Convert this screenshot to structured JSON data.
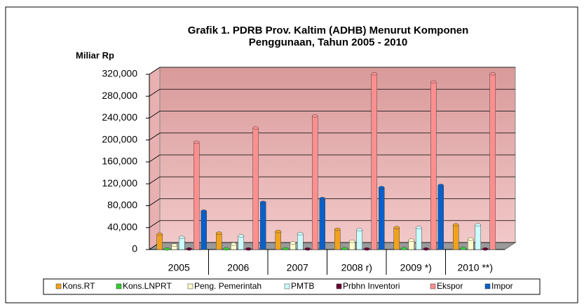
{
  "chart_data": {
    "type": "bar3d",
    "title": [
      "Grafik 1. PDRB Prov. Kaltim (ADHB) Menurut Komponen",
      "Penggunaan,  Tahun 2005 -  2010"
    ],
    "y_label": "Miliar Rp",
    "categories": [
      "2005",
      "2006",
      "2007",
      "2008 r)",
      "2009 *)",
      "2010 **)"
    ],
    "ylim": [
      0,
      320000
    ],
    "yticks": [
      0,
      {
        "value": 40000,
        "label": "40,000"
      },
      {
        "value": 80000,
        "label": "80,000"
      },
      {
        "value": 120000,
        "label": "120,000"
      },
      {
        "value": 160000,
        "label": "160,000"
      },
      {
        "value": 200000,
        "label": "200,000"
      },
      {
        "value": 240000,
        "label": "240,000"
      },
      {
        "value": 280000,
        "label": "280,000"
      },
      {
        "value": 320000,
        "label": "320,000"
      }
    ],
    "grid": true,
    "legend": "bottom",
    "series": [
      {
        "name": "Kons.RT",
        "color": "#f0a21e",
        "values": [
          28000,
          30000,
          33000,
          37000,
          40000,
          45000
        ]
      },
      {
        "name": "Kons.LNPRT",
        "color": "#33cc33",
        "values": [
          1000,
          1200,
          1400,
          1600,
          1800,
          2000
        ]
      },
      {
        "name": "Peng. Pemerintah",
        "color": "#ffffcc",
        "values": [
          8000,
          10000,
          12000,
          15000,
          17000,
          19000
        ]
      },
      {
        "name": "PMTB",
        "color": "#ccffff",
        "values": [
          22000,
          25000,
          29000,
          36000,
          40000,
          45000
        ]
      },
      {
        "name": "Prbhn Inventori",
        "color": "#660033",
        "values": [
          1000,
          1000,
          1000,
          1000,
          1000,
          1000
        ]
      },
      {
        "name": "Ekspor",
        "color": "#ff8f8f",
        "values": [
          196000,
          222000,
          244000,
          321000,
          306000,
          321000
        ]
      },
      {
        "name": "Impor",
        "color": "#0a5fc8",
        "values": [
          70000,
          86000,
          93000,
          113000,
          117000,
          null
        ]
      }
    ]
  }
}
